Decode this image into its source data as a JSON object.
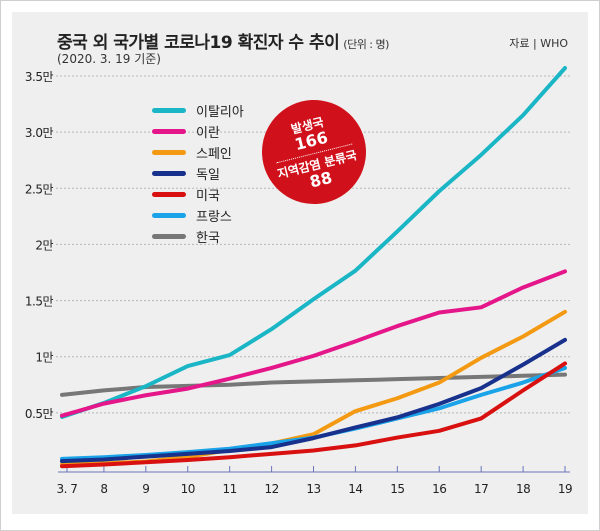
{
  "header": {
    "title": "중국 외 국가별 코로나19 확진자 수 추이",
    "unit": "(단위 : 명)",
    "subtitle": "(2020. 3. 19 기준)",
    "source": "자료 | WHO"
  },
  "badge": {
    "origin_label": "발생국",
    "origin_count": "166",
    "local_label": "지역감염 분류국",
    "local_count": "88"
  },
  "chart_data": {
    "type": "line",
    "title": "중국 외 국가별 코로나19 확진자 수 추이",
    "categories": [
      "3. 7",
      "8",
      "9",
      "10",
      "11",
      "12",
      "13",
      "14",
      "15",
      "16",
      "17",
      "18",
      "19"
    ],
    "y_ticks": [
      {
        "v": 5000,
        "label": "0.5만"
      },
      {
        "v": 10000,
        "label": "1만"
      },
      {
        "v": 15000,
        "label": "1.5만"
      },
      {
        "v": 20000,
        "label": "2만"
      },
      {
        "v": 25000,
        "label": "2.5만"
      },
      {
        "v": 30000,
        "label": "3.0만"
      },
      {
        "v": 35000,
        "label": "3.5만"
      }
    ],
    "ylim": [
      0,
      35000
    ],
    "grid": true,
    "legend_position": "top-left",
    "series": [
      {
        "name": "이탈리아",
        "color": "#1ab6c6",
        "values": [
          4636,
          5883,
          7375,
          9172,
          10149,
          12462,
          15113,
          17660,
          21157,
          24747,
          27980,
          31506,
          35713
        ]
      },
      {
        "name": "이란",
        "color": "#e4168a",
        "values": [
          4747,
          5823,
          6566,
          7161,
          8042,
          9000,
          10075,
          11364,
          12729,
          13938,
          14400,
          16169,
          17600
        ]
      },
      {
        "name": "스페인",
        "color": "#f39a12",
        "values": [
          400,
          500,
          673,
          1073,
          1695,
          2277,
          3100,
          5150,
          6300,
          7700,
          9900,
          11800,
          14000
        ]
      },
      {
        "name": "독일",
        "color": "#17318c",
        "values": [
          700,
          850,
          1100,
          1350,
          1600,
          1950,
          2750,
          3700,
          4600,
          5800,
          7200,
          9300,
          11500
        ]
      },
      {
        "name": "미국",
        "color": "#d81010",
        "values": [
          250,
          400,
          600,
          800,
          1050,
          1350,
          1650,
          2100,
          2800,
          3400,
          4500,
          7000,
          9400
        ]
      },
      {
        "name": "프랑스",
        "color": "#1aa3e8",
        "values": [
          900,
          1050,
          1250,
          1500,
          1800,
          2300,
          2800,
          3600,
          4500,
          5400,
          6600,
          7700,
          9000
        ]
      },
      {
        "name": "한국",
        "color": "#777777",
        "values": [
          6600,
          7000,
          7300,
          7400,
          7500,
          7700,
          7800,
          7900,
          8000,
          8100,
          8200,
          8300,
          8400
        ]
      }
    ]
  }
}
